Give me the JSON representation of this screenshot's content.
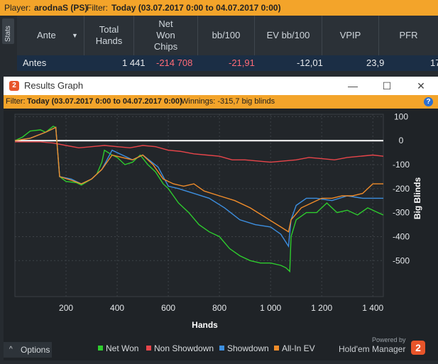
{
  "topbar": {
    "player_label": "Player:",
    "player": "arodnaS (PS)",
    "filter_label": "Filter:",
    "filter": "Today (03.07.2017 0:00 to 04.07.2017 0:00)"
  },
  "stats_tab": "Stats",
  "table": {
    "headers": [
      "Ante",
      "Total Hands",
      "Net Won Chips",
      "bb/100",
      "EV bb/100",
      "VPIP",
      "PFR"
    ],
    "row": [
      "Antes",
      "1 441",
      "-214 708",
      "-21,91",
      "-12,01",
      "23,9",
      "17"
    ]
  },
  "window": {
    "title": "Results Graph",
    "filter_label": "Filter:",
    "filter": "Today (03.07.2017 0:00 to 04.07.2017 0:00)",
    "winnings": "Winnings: -315,7 big blinds"
  },
  "footer": {
    "options": "Options",
    "powered_by": "Powered by",
    "brand": "Hold'em Manager"
  },
  "colors": {
    "net_won": "#2ecc2e",
    "non_showdown": "#e8454a",
    "showdown": "#3d8fe0",
    "allin_ev": "#f08c2a"
  },
  "chart_data": {
    "type": "line",
    "xlabel": "Hands",
    "ylabel": "Big Blinds",
    "xlim": [
      0,
      1441
    ],
    "ylim": [
      -650,
      110
    ],
    "xticks": [
      200,
      400,
      600,
      800,
      1000,
      1200,
      1400
    ],
    "xtick_labels": [
      "200",
      "400",
      "600",
      "800",
      "1 000",
      "1 200",
      "1 400"
    ],
    "yticks": [
      100,
      0,
      -100,
      -200,
      -300,
      -400,
      -500
    ],
    "ytick_labels": [
      "100",
      "0",
      "-100",
      "-200",
      "-300",
      "-400",
      "-500"
    ],
    "legend_position": "bottom",
    "series": [
      {
        "name": "Net Won",
        "color": "#2ecc2e",
        "x": [
          0,
          30,
          60,
          100,
          120,
          150,
          160,
          175,
          200,
          240,
          260,
          300,
          320,
          340,
          350,
          380,
          400,
          430,
          460,
          490,
          520,
          550,
          580,
          600,
          640,
          680,
          720,
          760,
          800,
          840,
          880,
          920,
          960,
          1000,
          1040,
          1060,
          1075,
          1080,
          1100,
          1140,
          1180,
          1220,
          1260,
          1300,
          1340,
          1380,
          1420,
          1441
        ],
        "y": [
          0,
          15,
          40,
          45,
          35,
          60,
          55,
          -150,
          -170,
          -175,
          -185,
          -160,
          -140,
          -90,
          -40,
          -60,
          -70,
          -100,
          -90,
          -60,
          -100,
          -130,
          -180,
          -200,
          -260,
          -300,
          -350,
          -380,
          -400,
          -450,
          -480,
          -500,
          -510,
          -510,
          -520,
          -530,
          -545,
          -400,
          -330,
          -300,
          -300,
          -260,
          -300,
          -290,
          -310,
          -280,
          -300,
          -310
        ]
      },
      {
        "name": "Non Showdown",
        "color": "#e8454a",
        "x": [
          0,
          50,
          100,
          150,
          200,
          250,
          300,
          350,
          400,
          450,
          500,
          550,
          600,
          650,
          700,
          750,
          800,
          850,
          900,
          950,
          1000,
          1050,
          1100,
          1150,
          1200,
          1250,
          1300,
          1350,
          1400,
          1441
        ],
        "y": [
          -5,
          -5,
          -5,
          -10,
          -20,
          -30,
          -25,
          -20,
          -25,
          -30,
          -20,
          -25,
          -40,
          -45,
          -55,
          -60,
          -65,
          -80,
          -80,
          -85,
          -90,
          -85,
          -80,
          -70,
          -75,
          -80,
          -70,
          -65,
          -60,
          -65
        ]
      },
      {
        "name": "Showdown",
        "color": "#3d8fe0",
        "x": [
          0,
          60,
          120,
          150,
          160,
          175,
          220,
          260,
          300,
          340,
          380,
          420,
          460,
          500,
          560,
          600,
          640,
          700,
          760,
          820,
          880,
          940,
          1000,
          1040,
          1070,
          1080,
          1100,
          1140,
          1180,
          1240,
          1300,
          1360,
          1400,
          1441
        ],
        "y": [
          0,
          10,
          35,
          50,
          55,
          -150,
          -160,
          -180,
          -160,
          -120,
          -40,
          -60,
          -80,
          -60,
          -110,
          -190,
          -200,
          -220,
          -240,
          -280,
          -330,
          -350,
          -360,
          -390,
          -440,
          -330,
          -270,
          -240,
          -240,
          -250,
          -230,
          -240,
          -240,
          -240
        ]
      },
      {
        "name": "All-In EV",
        "color": "#f08c2a",
        "x": [
          0,
          60,
          120,
          150,
          160,
          175,
          220,
          260,
          300,
          340,
          380,
          420,
          460,
          500,
          540,
          580,
          620,
          660,
          700,
          740,
          800,
          860,
          920,
          980,
          1040,
          1070,
          1080,
          1120,
          1160,
          1200,
          1240,
          1280,
          1320,
          1360,
          1400,
          1441
        ],
        "y": [
          0,
          10,
          35,
          50,
          55,
          -150,
          -165,
          -180,
          -160,
          -120,
          -60,
          -70,
          -80,
          -60,
          -100,
          -160,
          -180,
          -190,
          -180,
          -210,
          -230,
          -250,
          -280,
          -320,
          -360,
          -380,
          -330,
          -280,
          -260,
          -240,
          -240,
          -230,
          -230,
          -220,
          -180,
          -180
        ]
      }
    ]
  }
}
